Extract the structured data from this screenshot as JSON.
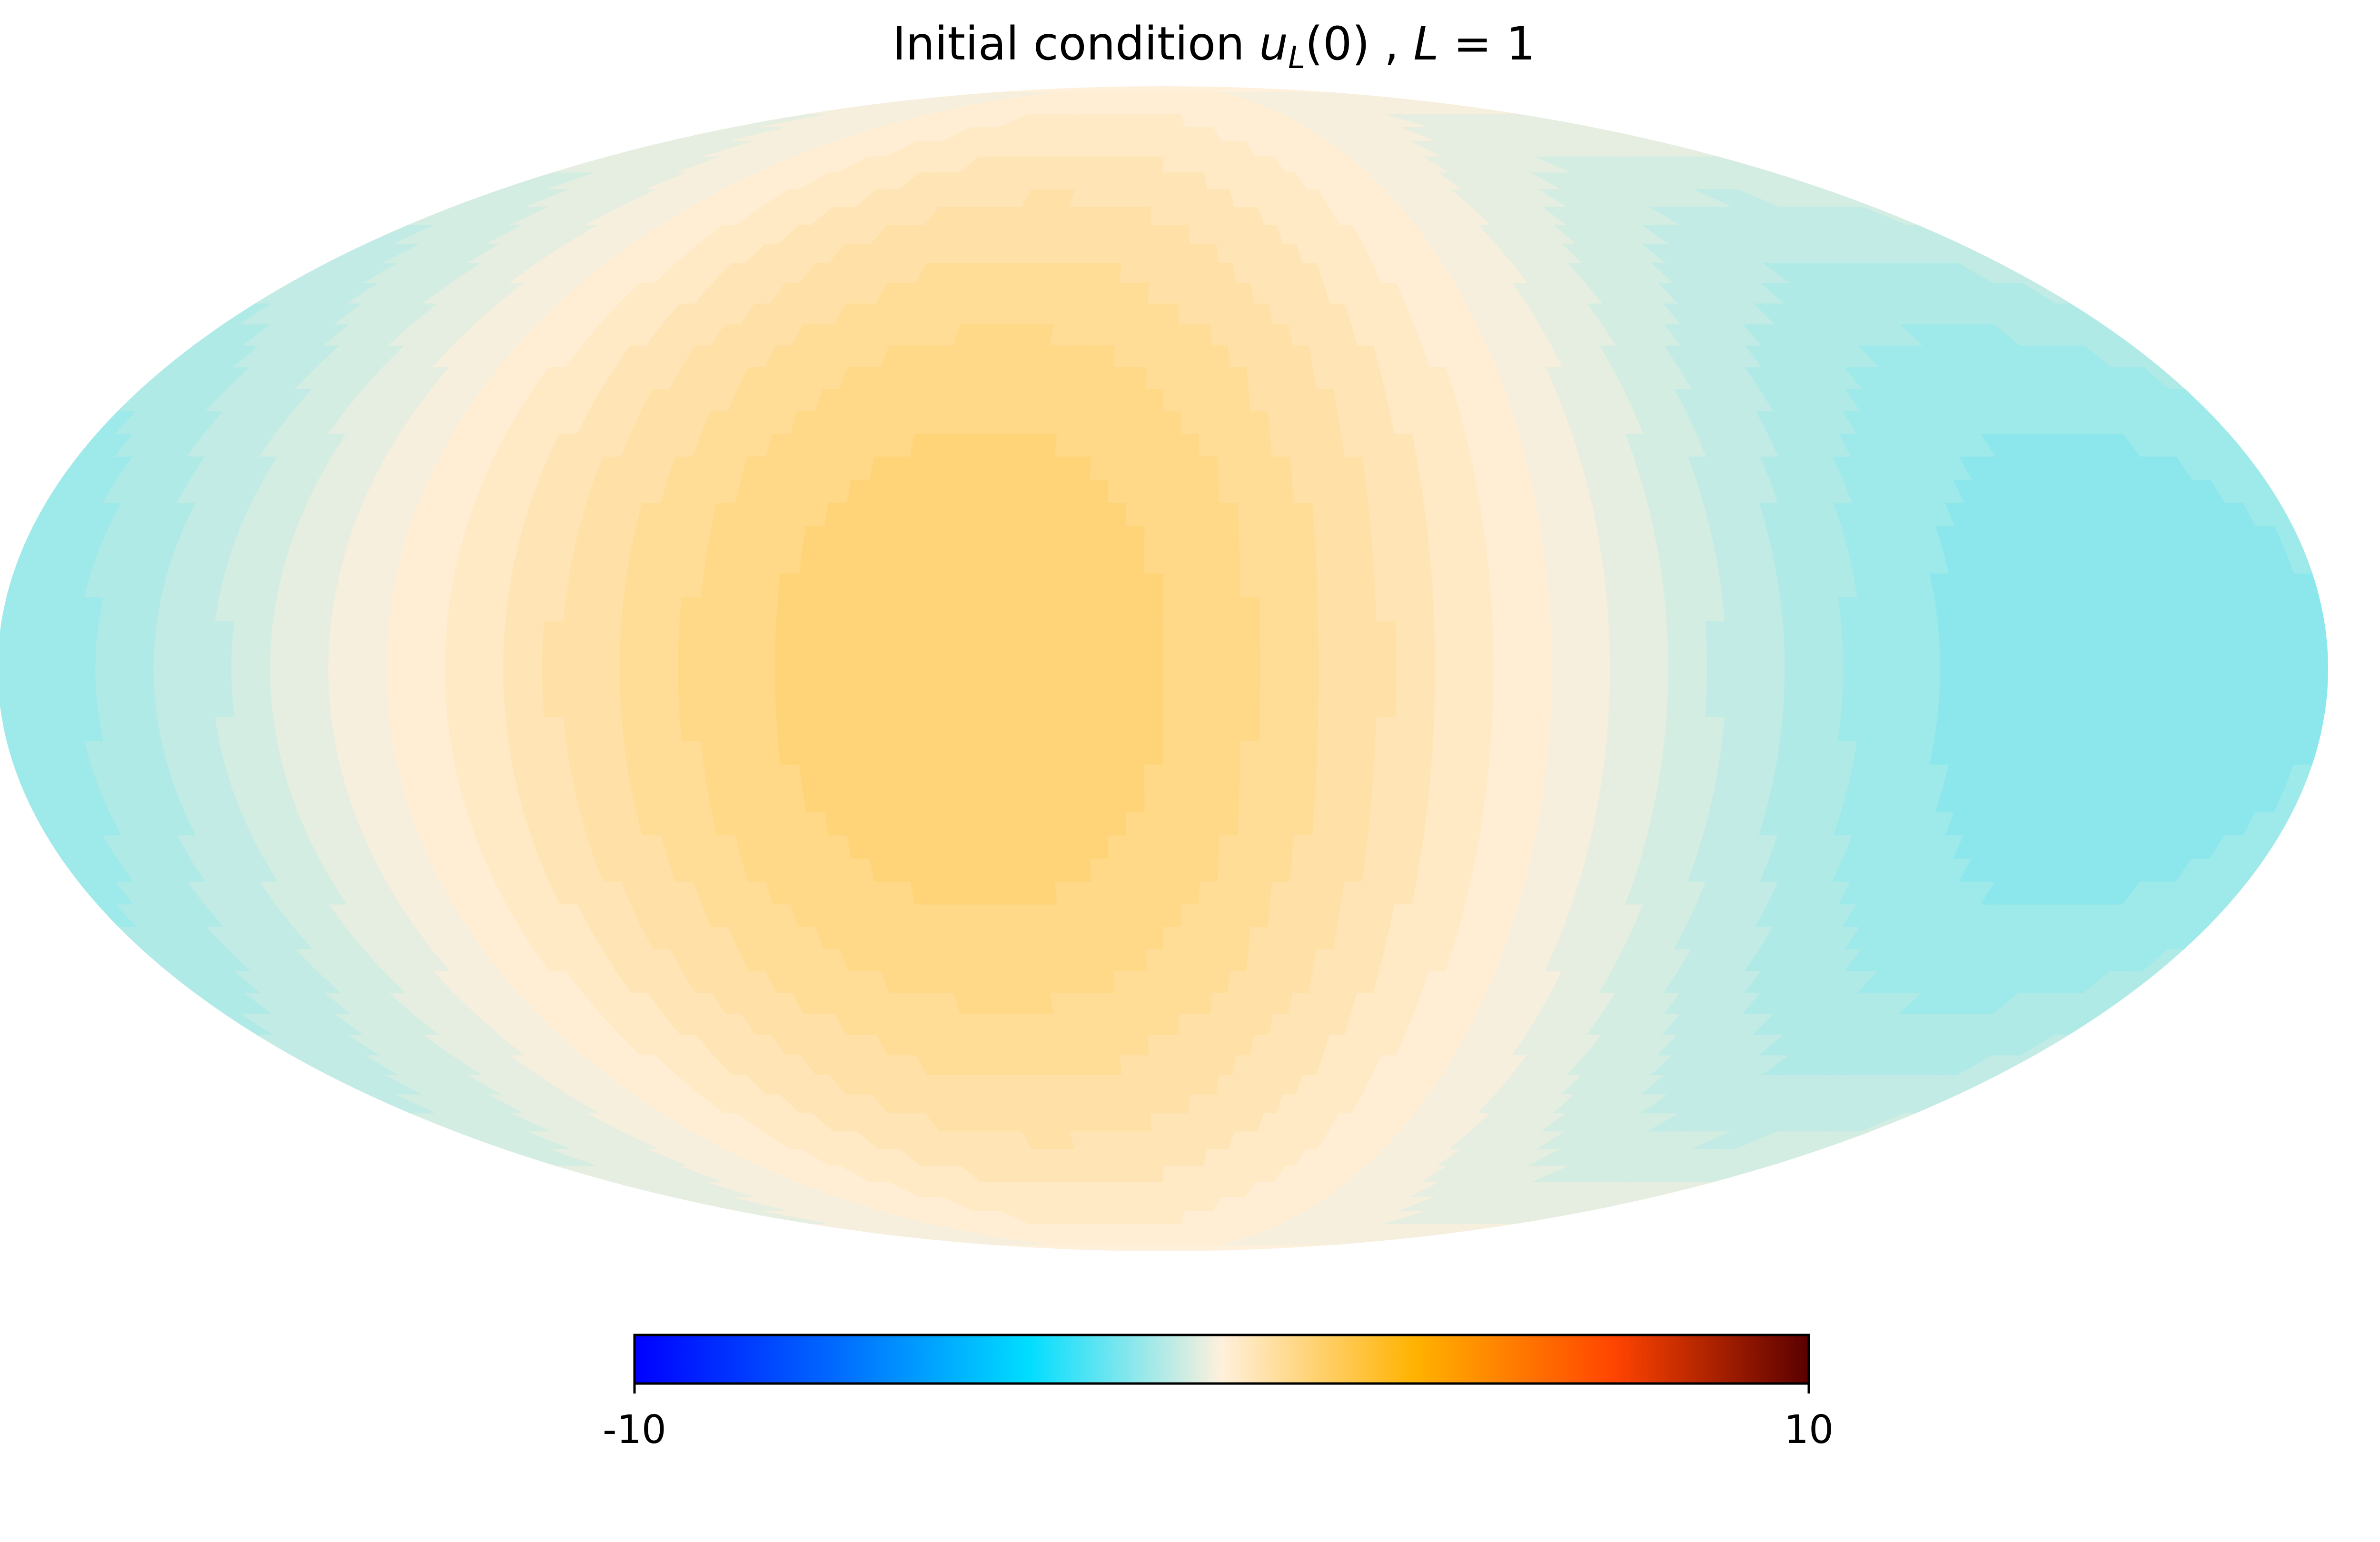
{
  "chart_data": {
    "type": "heatmap",
    "projection": "mollweide",
    "title": {
      "prefix": "Initial condition ",
      "var": "u",
      "sub": "L",
      "args": "(0)",
      "sep": " , ",
      "param_name": "L",
      "param_eq": " = ",
      "param_value": "1"
    },
    "colorbar": {
      "orientation": "horizontal",
      "vmin": -10,
      "vmax": 10,
      "min_label": "-10",
      "max_label": "10",
      "colormap_stops": [
        {
          "value": -10,
          "color": "#0000ff"
        },
        {
          "value": -6.7,
          "color": "#0066ff"
        },
        {
          "value": -3.3,
          "color": "#00ddff"
        },
        {
          "value": 0,
          "color": "#fff0dc"
        },
        {
          "value": 3.3,
          "color": "#ffb200"
        },
        {
          "value": 6.7,
          "color": "#ff4400"
        },
        {
          "value": 10,
          "color": "#5a0000"
        }
      ]
    },
    "field_summary": {
      "description_type": "l1_dipole",
      "max_value": 1.6,
      "max_longitude_deg": 30,
      "max_latitude_deg": 0,
      "min_value": -1.6,
      "min_longitude_deg": -150,
      "min_latitude_deg": 0,
      "contour_levels": 14
    }
  }
}
